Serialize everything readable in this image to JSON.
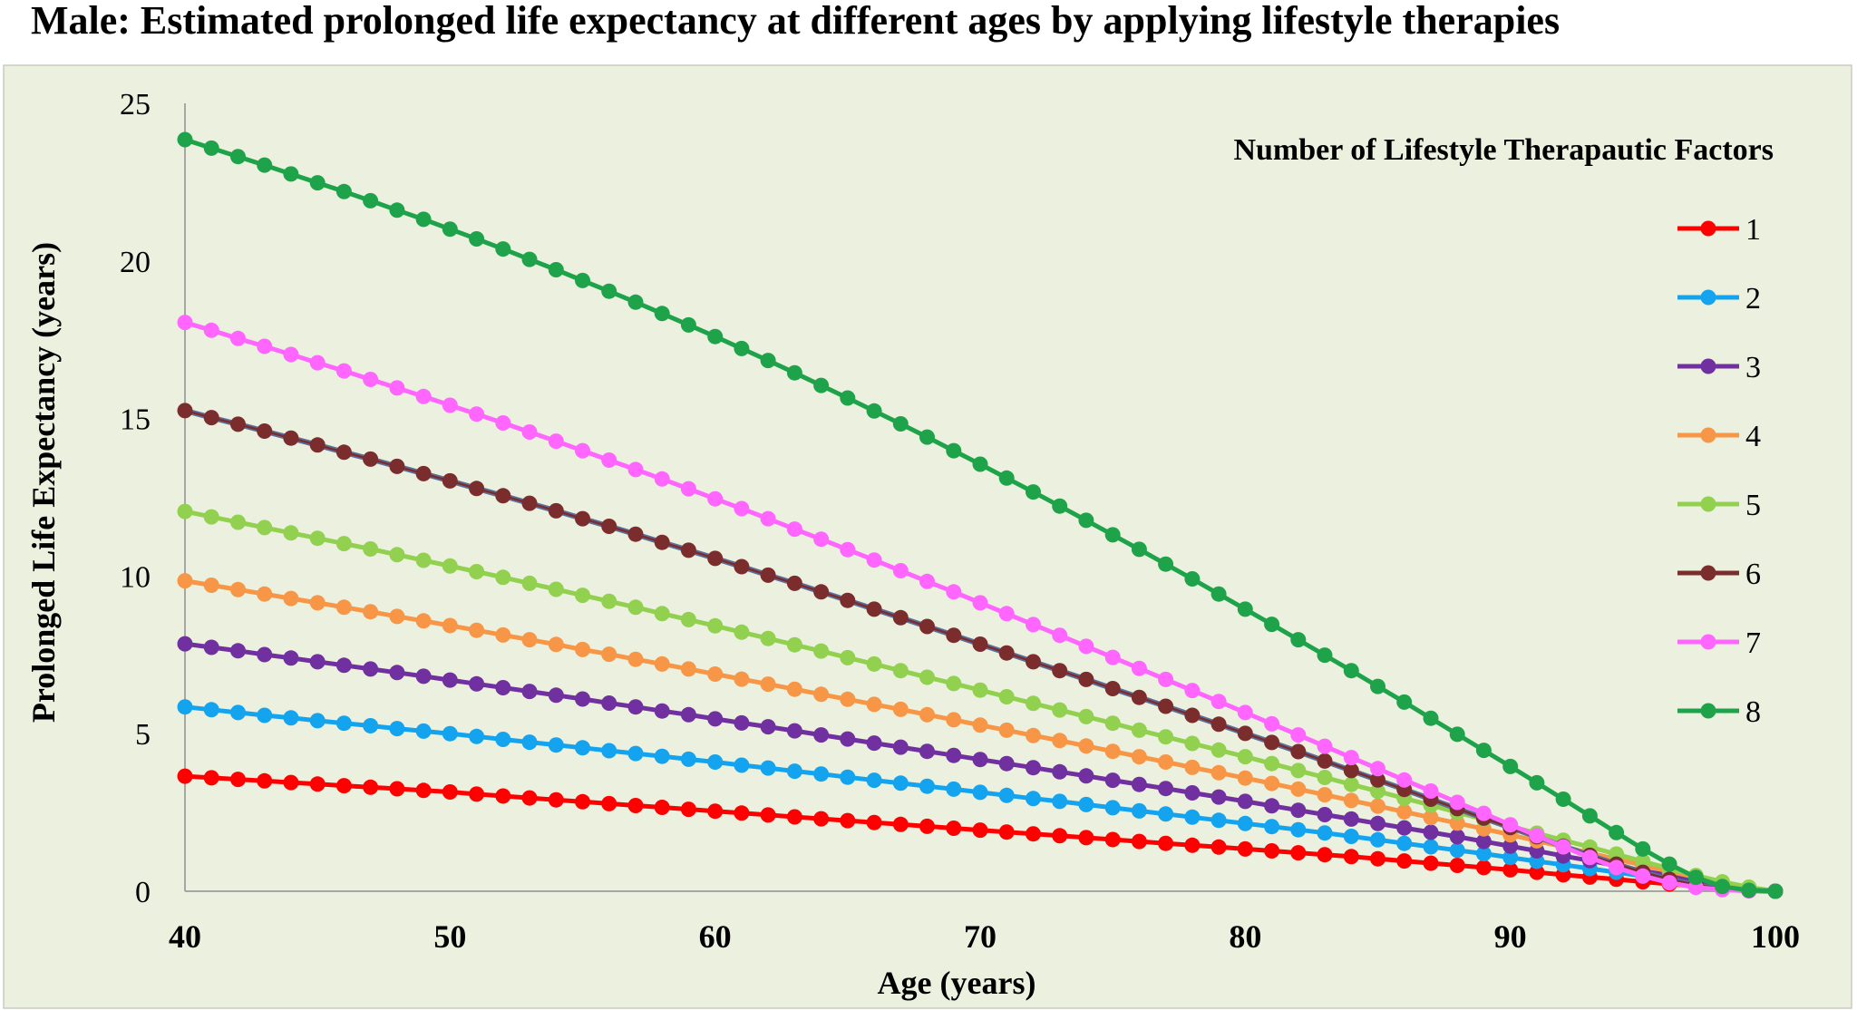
{
  "chart_data": {
    "type": "line",
    "title": "Male: Estimated prolonged life expectancy at different ages by applying lifestyle therapies",
    "xlabel": "Age (years)",
    "ylabel": "Prolonged Life Expectancy (years)",
    "xlim": [
      40,
      100
    ],
    "ylim": [
      0,
      25
    ],
    "x_ticks": [
      "40",
      "50",
      "60",
      "70",
      "80",
      "90",
      "100"
    ],
    "y_ticks": [
      "0",
      "5",
      "10",
      "15",
      "20",
      "25"
    ],
    "x": [
      40,
      41,
      42,
      43,
      44,
      45,
      46,
      47,
      48,
      49,
      50,
      51,
      52,
      53,
      54,
      55,
      56,
      57,
      58,
      59,
      60,
      61,
      62,
      63,
      64,
      65,
      66,
      67,
      68,
      69,
      70,
      71,
      72,
      73,
      74,
      75,
      76,
      77,
      78,
      79,
      80,
      81,
      82,
      83,
      84,
      85,
      86,
      87,
      88,
      89,
      90,
      91,
      92,
      93,
      94,
      95,
      96,
      97,
      98,
      99,
      100
    ],
    "grid": false,
    "legend": {
      "title": "Number of Lifestyle Therapautic Factors",
      "position": "top-right"
    },
    "series": [
      {
        "name": "1",
        "color": "#ff0000",
        "values": [
          3.65,
          3.6,
          3.55,
          3.5,
          3.45,
          3.4,
          3.35,
          3.3,
          3.25,
          3.2,
          3.15,
          3.08,
          3.02,
          2.96,
          2.9,
          2.84,
          2.78,
          2.72,
          2.66,
          2.6,
          2.54,
          2.48,
          2.42,
          2.36,
          2.3,
          2.24,
          2.18,
          2.12,
          2.06,
          2,
          1.94,
          1.88,
          1.82,
          1.76,
          1.7,
          1.64,
          1.58,
          1.52,
          1.46,
          1.4,
          1.34,
          1.28,
          1.22,
          1.16,
          1.1,
          1.03,
          0.96,
          0.89,
          0.82,
          0.75,
          0.68,
          0.6,
          0.52,
          0.45,
          0.38,
          0.3,
          0.23,
          0.16,
          0.1,
          0.04,
          0
        ]
      },
      {
        "name": "2",
        "color": "#14a3ee",
        "values": [
          5.85,
          5.76,
          5.67,
          5.58,
          5.5,
          5.41,
          5.33,
          5.25,
          5.16,
          5.08,
          5,
          4.91,
          4.82,
          4.73,
          4.64,
          4.55,
          4.46,
          4.37,
          4.28,
          4.19,
          4.1,
          4,
          3.91,
          3.81,
          3.72,
          3.62,
          3.52,
          3.43,
          3.33,
          3.24,
          3.14,
          3.04,
          2.94,
          2.85,
          2.75,
          2.65,
          2.55,
          2.45,
          2.35,
          2.25,
          2.15,
          2.05,
          1.95,
          1.85,
          1.74,
          1.63,
          1.52,
          1.41,
          1.3,
          1.19,
          1.07,
          0.95,
          0.84,
          0.72,
          0.6,
          0.48,
          0.37,
          0.26,
          0.16,
          0.07,
          0
        ]
      },
      {
        "name": "3",
        "color": "#7030a0",
        "values": [
          7.85,
          7.74,
          7.63,
          7.51,
          7.4,
          7.28,
          7.17,
          7.05,
          6.94,
          6.82,
          6.7,
          6.58,
          6.46,
          6.34,
          6.22,
          6.1,
          5.97,
          5.85,
          5.72,
          5.6,
          5.47,
          5.34,
          5.22,
          5.09,
          4.96,
          4.83,
          4.7,
          4.57,
          4.44,
          4.31,
          4.18,
          4.05,
          3.92,
          3.79,
          3.66,
          3.52,
          3.39,
          3.26,
          3.12,
          2.99,
          2.85,
          2.71,
          2.57,
          2.43,
          2.29,
          2.15,
          2.01,
          1.87,
          1.73,
          1.58,
          1.43,
          1.28,
          1.12,
          0.97,
          0.81,
          0.65,
          0.5,
          0.35,
          0.22,
          0.1,
          0
        ]
      },
      {
        "name": "4",
        "color": "#f79646",
        "values": [
          9.85,
          9.71,
          9.57,
          9.43,
          9.29,
          9.15,
          9.01,
          8.87,
          8.72,
          8.58,
          8.43,
          8.28,
          8.13,
          7.98,
          7.83,
          7.67,
          7.52,
          7.36,
          7.21,
          7.05,
          6.89,
          6.73,
          6.57,
          6.41,
          6.25,
          6.09,
          5.93,
          5.77,
          5.6,
          5.44,
          5.27,
          5.11,
          4.94,
          4.78,
          4.61,
          4.44,
          4.27,
          4.1,
          3.93,
          3.76,
          3.59,
          3.42,
          3.24,
          3.06,
          2.88,
          2.7,
          2.52,
          2.34,
          2.16,
          1.98,
          1.79,
          1.6,
          1.41,
          1.21,
          1.02,
          0.82,
          0.63,
          0.44,
          0.27,
          0.12,
          0
        ]
      },
      {
        "name": "5",
        "color": "#92d050",
        "values": [
          12.05,
          11.88,
          11.71,
          11.54,
          11.37,
          11.2,
          11.03,
          10.86,
          10.68,
          10.5,
          10.32,
          10.14,
          9.96,
          9.77,
          9.58,
          9.39,
          9.2,
          9.01,
          8.81,
          8.62,
          8.42,
          8.22,
          8.02,
          7.82,
          7.62,
          7.41,
          7.21,
          7,
          6.79,
          6.59,
          6.38,
          6.17,
          5.96,
          5.75,
          5.54,
          5.33,
          5.11,
          4.9,
          4.69,
          4.48,
          4.27,
          4.05,
          3.83,
          3.61,
          3.39,
          3.17,
          2.95,
          2.73,
          2.5,
          2.28,
          2.06,
          1.84,
          1.62,
          1.4,
          1.18,
          0.95,
          0.72,
          0.5,
          0.3,
          0.13,
          0
        ]
      },
      {
        "name": "6",
        "color": "#7b2c2c",
        "values": [
          15.25,
          15.03,
          14.82,
          14.6,
          14.38,
          14.16,
          13.93,
          13.71,
          13.48,
          13.25,
          13.02,
          12.78,
          12.55,
          12.31,
          12.07,
          11.82,
          11.58,
          11.33,
          11.07,
          10.82,
          10.56,
          10.3,
          10.03,
          9.77,
          9.5,
          9.23,
          8.95,
          8.68,
          8.4,
          8.12,
          7.84,
          7.56,
          7.28,
          7,
          6.72,
          6.43,
          6.15,
          5.87,
          5.58,
          5.3,
          5.01,
          4.72,
          4.43,
          4.13,
          3.83,
          3.53,
          3.23,
          2.92,
          2.62,
          2.32,
          2.02,
          1.73,
          1.43,
          1.14,
          0.86,
          0.6,
          0.38,
          0.2,
          0.08,
          0.02,
          0
        ]
      },
      {
        "name": "7",
        "color": "#ff66ff",
        "values": [
          18.05,
          17.8,
          17.54,
          17.29,
          17.03,
          16.77,
          16.51,
          16.24,
          15.97,
          15.7,
          15.42,
          15.14,
          14.86,
          14.57,
          14.28,
          13.98,
          13.68,
          13.38,
          13.08,
          12.77,
          12.45,
          12.14,
          11.82,
          11.49,
          11.17,
          10.84,
          10.51,
          10.17,
          9.83,
          9.5,
          9.15,
          8.81,
          8.46,
          8.12,
          7.77,
          7.42,
          7.07,
          6.72,
          6.37,
          6.02,
          5.67,
          5.31,
          4.96,
          4.6,
          4.24,
          3.89,
          3.53,
          3.18,
          2.82,
          2.47,
          2.11,
          1.76,
          1.41,
          1.07,
          0.75,
          0.48,
          0.27,
          0.12,
          0.05,
          0.01,
          0
        ]
      },
      {
        "name": "8",
        "color": "#1ea34a",
        "values": [
          23.85,
          23.58,
          23.31,
          23.04,
          22.76,
          22.48,
          22.2,
          21.91,
          21.61,
          21.32,
          21.01,
          20.7,
          20.38,
          20.05,
          19.72,
          19.38,
          19.04,
          18.69,
          18.33,
          17.97,
          17.6,
          17.22,
          16.84,
          16.45,
          16.05,
          15.65,
          15.24,
          14.83,
          14.41,
          13.98,
          13.55,
          13.11,
          12.67,
          12.22,
          11.77,
          11.31,
          10.85,
          10.38,
          9.91,
          9.43,
          8.95,
          8.47,
          7.98,
          7.49,
          7,
          6.5,
          6,
          5.49,
          4.98,
          4.47,
          3.96,
          3.44,
          2.92,
          2.39,
          1.86,
          1.34,
          0.86,
          0.44,
          0.15,
          0.03,
          0
        ]
      }
    ]
  }
}
